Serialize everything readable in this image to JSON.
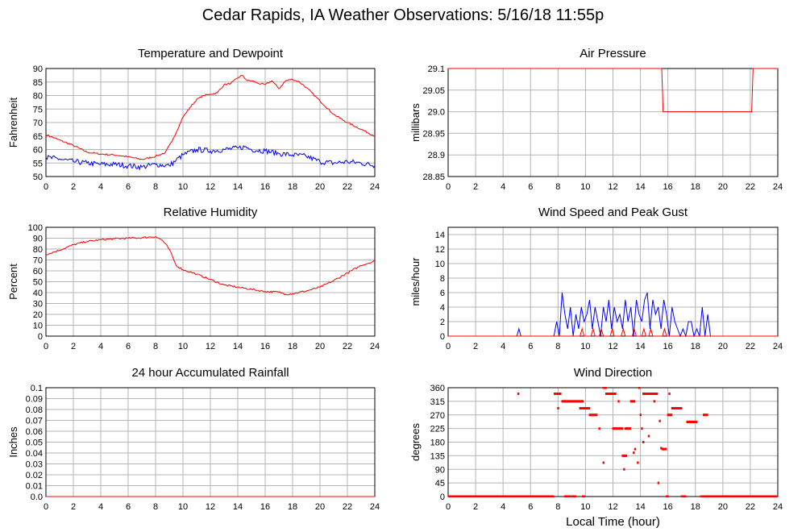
{
  "title": "Cedar Rapids, IA Weather Observations: 5/16/18 11:55p",
  "footer_xlabel": "Local Time (hour)",
  "colors": {
    "red": "#ff0000",
    "blue": "#0000ff",
    "grid": "#b4b4b4",
    "axis": "#000000"
  },
  "chart_data": [
    {
      "id": "temp",
      "type": "line",
      "title": "Temperature and Dewpoint",
      "ylabel": "Fahrenheit",
      "xlim": [
        0,
        24
      ],
      "ylim": [
        50,
        90
      ],
      "xticks": [
        0,
        2,
        4,
        6,
        8,
        10,
        12,
        14,
        16,
        18,
        20,
        22,
        24
      ],
      "yticks": [
        50,
        55,
        60,
        65,
        70,
        75,
        80,
        85,
        90
      ],
      "ytick_labels": [
        "50",
        "55",
        "60",
        "65",
        "70",
        "75",
        "80",
        "85",
        "90"
      ],
      "grid": true,
      "series": [
        {
          "color": "#ff0000",
          "noise": 0.3,
          "x": [
            0,
            1,
            2,
            3,
            4,
            5,
            6,
            7,
            8,
            8.7,
            9.2,
            10,
            10.5,
            11,
            11.5,
            12,
            12.5,
            13,
            13.5,
            14,
            14.3,
            14.7,
            15,
            15.5,
            16,
            16.5,
            17,
            17.5,
            18,
            18.5,
            19,
            20,
            21,
            22,
            23,
            24
          ],
          "y": [
            65.5,
            63.5,
            61.5,
            59,
            58.3,
            58,
            57.3,
            56.3,
            57.5,
            58.8,
            63,
            72,
            75.5,
            78.5,
            80,
            80.5,
            81,
            84,
            84.5,
            86.5,
            87.5,
            85.5,
            85.5,
            84.5,
            84,
            85.5,
            82.5,
            85.5,
            86,
            85,
            83,
            78,
            73,
            70,
            67.5,
            65
          ]
        },
        {
          "color": "#0000ff",
          "noise": 1.0,
          "x": [
            0,
            1,
            2,
            3,
            4,
            5,
            6,
            7,
            8,
            9,
            9.5,
            10,
            11,
            12,
            13,
            14,
            14.5,
            15,
            16,
            17,
            18,
            19,
            20,
            21,
            22,
            23,
            24
          ],
          "y": [
            57,
            56.5,
            55.5,
            55,
            54.5,
            54.5,
            54,
            53.5,
            54.5,
            54,
            56,
            58,
            60,
            59.5,
            60,
            60.5,
            61,
            60,
            59.5,
            58.5,
            58,
            57.5,
            55.5,
            55,
            55.5,
            55,
            54
          ]
        }
      ]
    },
    {
      "id": "pressure",
      "type": "line",
      "title": "Air Pressure",
      "ylabel": "millibars",
      "xlim": [
        0,
        24
      ],
      "ylim": [
        28.85,
        29.1
      ],
      "xticks": [
        0,
        2,
        4,
        6,
        8,
        10,
        12,
        14,
        16,
        18,
        20,
        22,
        24
      ],
      "yticks": [
        28.85,
        28.9,
        28.95,
        29.0,
        29.05,
        29.1
      ],
      "ytick_labels": [
        "28.85",
        "28.9",
        "28.95",
        "29.0",
        "29.05",
        "29.1"
      ],
      "grid": true,
      "series": [
        {
          "color": "#ff0000",
          "noise": 0,
          "x": [
            0,
            15.55,
            15.6,
            15.65,
            22.1,
            22.15,
            22.2,
            24
          ],
          "y": [
            29.1,
            29.1,
            29.05,
            29.0,
            29.0,
            29.05,
            29.1,
            29.1
          ]
        }
      ]
    },
    {
      "id": "humidity",
      "type": "line",
      "title": "Relative Humidity",
      "ylabel": "Percent",
      "xlim": [
        0,
        24
      ],
      "ylim": [
        0,
        100
      ],
      "xticks": [
        0,
        2,
        4,
        6,
        8,
        10,
        12,
        14,
        16,
        18,
        20,
        22,
        24
      ],
      "yticks": [
        0,
        10,
        20,
        30,
        40,
        50,
        60,
        70,
        80,
        90,
        100
      ],
      "ytick_labels": [
        "0",
        "10",
        "20",
        "30",
        "40",
        "50",
        "60",
        "70",
        "80",
        "90",
        "100"
      ],
      "grid": true,
      "series": [
        {
          "color": "#ff0000",
          "noise": 0.8,
          "x": [
            0,
            1,
            2,
            3,
            4,
            5,
            6,
            7,
            7.5,
            8,
            8.5,
            9,
            9.5,
            10,
            10.5,
            11,
            12,
            13,
            14,
            15,
            16,
            17,
            17.5,
            18,
            19,
            20,
            21,
            22,
            23,
            24
          ],
          "y": [
            75,
            79,
            84,
            87,
            88.5,
            89.5,
            90,
            90.5,
            91,
            91.5,
            88,
            80,
            65,
            61,
            59,
            57,
            52,
            47,
            45,
            43,
            41,
            40.5,
            38.5,
            39,
            41.5,
            45,
            51,
            58,
            65,
            69
          ]
        }
      ]
    },
    {
      "id": "wind",
      "type": "line",
      "title": "Wind Speed and Peak Gust",
      "ylabel": "miles/hour",
      "xlim": [
        0,
        24
      ],
      "ylim": [
        0,
        15
      ],
      "xticks": [
        0,
        2,
        4,
        6,
        8,
        10,
        12,
        14,
        16,
        18,
        20,
        22,
        24
      ],
      "yticks": [
        0,
        2,
        4,
        6,
        8,
        10,
        12,
        14
      ],
      "ytick_labels": [
        "0",
        "2",
        "4",
        "6",
        "8",
        "10",
        "12",
        "14"
      ],
      "grid": true,
      "series": [
        {
          "color": "#0000ff",
          "noise": 0,
          "x": [
            0,
            5.0,
            5.15,
            5.3,
            7.7,
            7.9,
            8.1,
            8.3,
            8.5,
            8.7,
            8.9,
            9.1,
            9.3,
            9.5,
            9.7,
            9.9,
            10.1,
            10.3,
            10.5,
            10.7,
            10.9,
            11.1,
            11.3,
            11.5,
            11.7,
            11.9,
            12.1,
            12.3,
            12.5,
            12.7,
            12.9,
            13.1,
            13.3,
            13.5,
            13.7,
            13.9,
            14.1,
            14.3,
            14.5,
            14.7,
            14.9,
            15.1,
            15.3,
            15.5,
            15.7,
            15.9,
            16.1,
            16.3,
            16.5,
            16.7,
            16.9,
            17.1,
            17.3,
            17.5,
            17.7,
            17.9,
            18.1,
            18.3,
            18.5,
            18.7,
            18.9,
            19.1,
            24
          ],
          "y": [
            0,
            0,
            1,
            0,
            0,
            2,
            0,
            6,
            3,
            1,
            4,
            0,
            3,
            1,
            4,
            2,
            3,
            5,
            1,
            4,
            2,
            0,
            4,
            2,
            5,
            1,
            4,
            2,
            3,
            1,
            5,
            2,
            4,
            0,
            5,
            3,
            2,
            5,
            6,
            1,
            5,
            3,
            4,
            1,
            5,
            3,
            0,
            4,
            2,
            1,
            0,
            1,
            0,
            2,
            2,
            0,
            1,
            0,
            4,
            0,
            3,
            0,
            0
          ]
        },
        {
          "color": "#ff0000",
          "noise": 0,
          "x": [
            0,
            9.6,
            9.75,
            9.9,
            10.4,
            10.55,
            10.7,
            11.0,
            11.15,
            11.3,
            11.8,
            11.95,
            12.1,
            12.6,
            12.75,
            12.9,
            13.4,
            13.55,
            13.7,
            14.1,
            14.25,
            14.4,
            14.6,
            14.75,
            14.9,
            15.6,
            15.75,
            15.9,
            24
          ],
          "y": [
            0,
            0,
            1,
            0,
            0,
            1,
            0,
            0,
            1,
            0,
            0,
            1,
            0,
            0,
            1,
            0,
            0,
            1,
            0,
            0,
            1,
            0,
            0,
            1,
            0,
            0,
            1,
            0,
            0
          ]
        }
      ]
    },
    {
      "id": "rain",
      "type": "line",
      "title": "24 hour Accumulated Rainfall",
      "ylabel": "Inches",
      "xlim": [
        0,
        24
      ],
      "ylim": [
        0,
        0.1
      ],
      "xticks": [
        0,
        2,
        4,
        6,
        8,
        10,
        12,
        14,
        16,
        18,
        20,
        22,
        24
      ],
      "yticks": [
        0,
        0.01,
        0.02,
        0.03,
        0.04,
        0.05,
        0.06,
        0.07,
        0.08,
        0.09,
        0.1
      ],
      "ytick_labels": [
        "0.0",
        "0.01",
        "0.02",
        "0.03",
        "0.04",
        "0.05",
        "0.06",
        "0.07",
        "0.08",
        "0.09",
        "0.1"
      ],
      "grid": true,
      "series": [
        {
          "color": "#ff0000",
          "noise": 0,
          "x": [
            0,
            24
          ],
          "y": [
            0,
            0
          ]
        }
      ]
    },
    {
      "id": "direction",
      "type": "scatter",
      "title": "Wind Direction",
      "ylabel": "degrees",
      "xlim": [
        0,
        24
      ],
      "ylim": [
        0,
        360
      ],
      "xticks": [
        0,
        2,
        4,
        6,
        8,
        10,
        12,
        14,
        16,
        18,
        20,
        22,
        24
      ],
      "yticks": [
        0,
        45,
        90,
        135,
        180,
        225,
        270,
        315,
        360
      ],
      "ytick_labels": [
        "0",
        "45",
        "90",
        "135",
        "180",
        "225",
        "270",
        "315",
        "360"
      ],
      "grid": true,
      "series": [
        {
          "color": "#ff0000",
          "runs": [
            [
              0,
              7.7,
              0
            ],
            [
              8.5,
              8.9,
              0
            ],
            [
              9.0,
              9.3,
              0
            ],
            [
              9.8,
              9.9,
              0
            ],
            [
              15.9,
              16.0,
              0
            ],
            [
              17.0,
              17.3,
              0
            ],
            [
              18.4,
              24,
              0
            ],
            [
              7.75,
              8.2,
              340
            ],
            [
              8.3,
              9.85,
              315
            ],
            [
              9.6,
              10.3,
              292
            ],
            [
              10.3,
              10.8,
              270
            ],
            [
              11.3,
              11.5,
              360
            ],
            [
              11.5,
              12.2,
              340
            ],
            [
              12.0,
              12.7,
              225
            ],
            [
              12.9,
              13.3,
              225
            ],
            [
              12.7,
              13.0,
              135
            ],
            [
              13.3,
              13.6,
              315
            ],
            [
              14.2,
              15.2,
              340
            ],
            [
              16.0,
              16.3,
              270
            ],
            [
              16.3,
              17.0,
              292
            ],
            [
              17.4,
              18.1,
              247
            ],
            [
              18.6,
              18.9,
              270
            ],
            [
              15.6,
              15.9,
              157
            ]
          ],
          "x": [
            5.1,
            8.0,
            11.0,
            11.3,
            12.8,
            13.6,
            13.8,
            13.9,
            14.0,
            14.1,
            14.2,
            15.3,
            15.5,
            14.6,
            15.0,
            16.1,
            12.4,
            15.4,
            13.5
          ],
          "y": [
            340,
            292,
            225,
            112,
            90,
            157,
            112,
            360,
            270,
            225,
            180,
            45,
            160,
            200,
            315,
            340,
            315,
            250,
            145
          ]
        }
      ]
    }
  ]
}
